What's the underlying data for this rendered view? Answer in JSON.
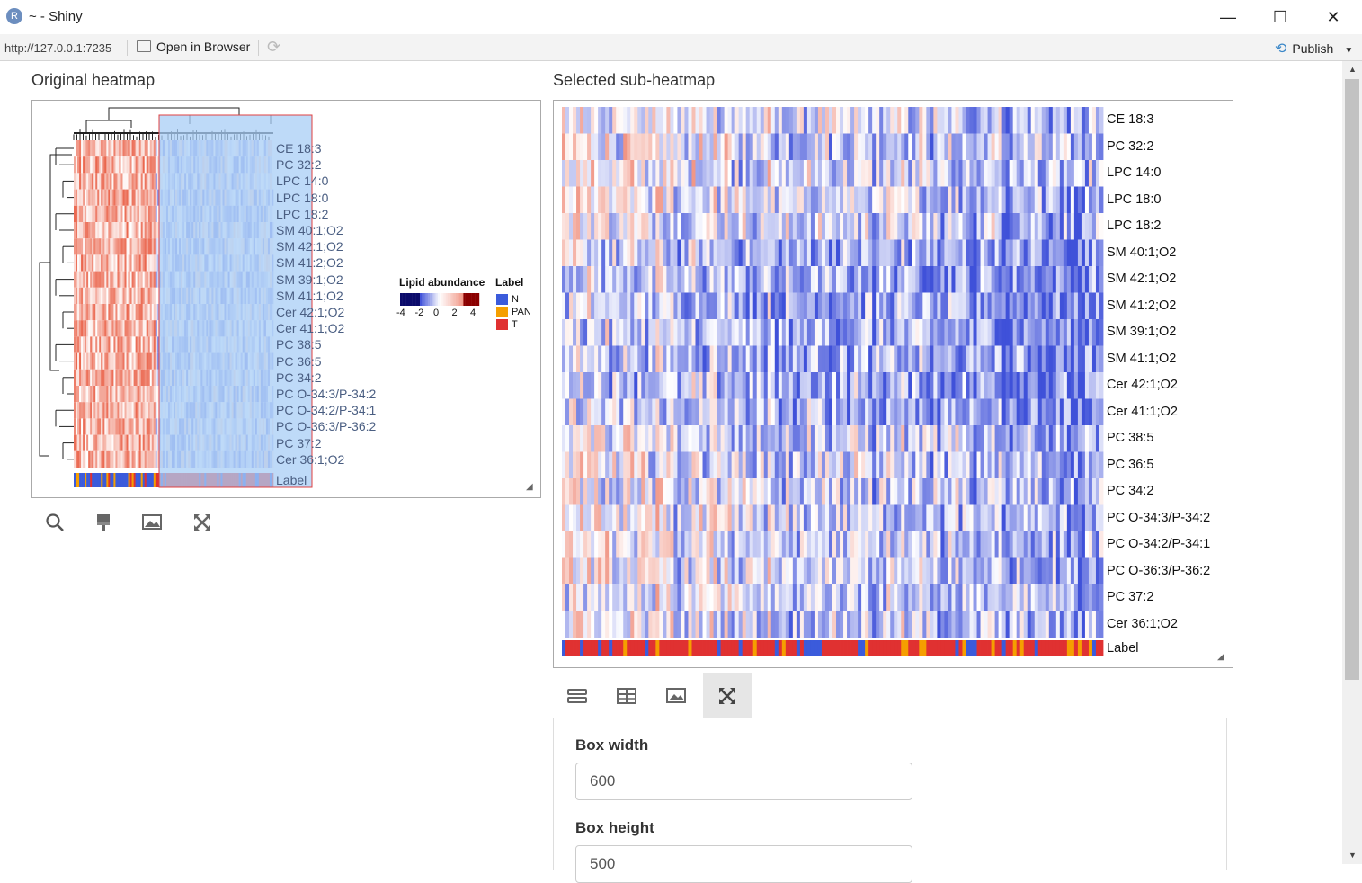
{
  "window": {
    "title": "~ - Shiny",
    "app_icon": "R",
    "minimize_glyph": "—",
    "maximize_glyph": "☐",
    "close_glyph": "✕"
  },
  "toolbar": {
    "url": "http://127.0.0.1:7235",
    "open_in_browser": "Open in Browser",
    "publish": "Publish"
  },
  "original": {
    "title": "Original heatmap",
    "row_labels": [
      "CE 18:3",
      "PC 32:2",
      "LPC 14:0",
      "LPC 18:0",
      "LPC 18:2",
      "SM 40:1;O2",
      "SM 42:1;O2",
      "SM 41:2;O2",
      "SM 39:1;O2",
      "SM 41:1;O2",
      "Cer 42:1;O2",
      "Cer 41:1;O2",
      "PC 38:5",
      "PC 36:5",
      "PC 34:2",
      "PC O-34:3/P-34:2",
      "PC O-34:2/P-34:1",
      "PC O-36:3/P-36:2",
      "PC 37:2",
      "Cer 36:1;O2"
    ],
    "annotation_label": "Label",
    "legend": {
      "abundance_title": "Lipid abundance",
      "abundance_ticks": [
        "-4",
        "-2",
        "0",
        "2",
        "4"
      ],
      "label_title": "Label",
      "label_entries": [
        {
          "name": "N",
          "color": "#3b5bdb"
        },
        {
          "name": "PAN",
          "color": "#f59f00"
        },
        {
          "name": "T",
          "color": "#e03131"
        }
      ]
    },
    "tools": [
      "search-icon",
      "brush-icon",
      "image-icon",
      "expand-icon"
    ]
  },
  "sub": {
    "title": "Selected sub-heatmap",
    "row_labels": [
      "CE 18:3",
      "PC 32:2",
      "LPC 14:0",
      "LPC 18:0",
      "LPC 18:2",
      "SM 40:1;O2",
      "SM 42:1;O2",
      "SM 41:2;O2",
      "SM 39:1;O2",
      "SM 41:1;O2",
      "Cer 42:1;O2",
      "Cer 41:1;O2",
      "PC 38:5",
      "PC 36:5",
      "PC 34:2",
      "PC O-34:3/P-34:2",
      "PC O-34:2/P-34:1",
      "PC O-36:3/P-36:2",
      "PC 37:2",
      "Cer 36:1;O2"
    ],
    "annotation_label": "Label",
    "tabs": [
      "list-icon",
      "table-icon",
      "image-icon",
      "expand-icon"
    ],
    "active_tab": 3
  },
  "settings": {
    "box_width_label": "Box width",
    "box_width_value": "600",
    "box_height_label": "Box height",
    "box_height_value": "500"
  },
  "colors": {
    "low": "#3f51d9",
    "mid": "#ffffff",
    "high": "#e8553a",
    "selection": "#a8cdf5"
  }
}
